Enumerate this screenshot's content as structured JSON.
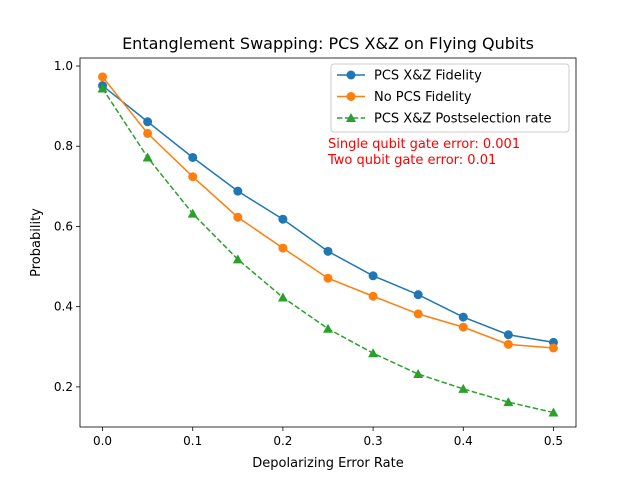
{
  "chart_data": {
    "type": "line",
    "title": "Entanglement Swapping: PCS X&Z on Flying Qubits",
    "xlabel": "Depolarizing Error Rate",
    "ylabel": "Probability",
    "x": [
      0.0,
      0.05,
      0.1,
      0.15,
      0.2,
      0.25,
      0.3,
      0.35,
      0.4,
      0.45,
      0.5
    ],
    "xlim": [
      -0.025,
      0.525
    ],
    "ylim": [
      0.1,
      1.02
    ],
    "xticks": [
      0.0,
      0.1,
      0.2,
      0.3,
      0.4,
      0.5
    ],
    "xtick_labels": [
      "0.0",
      "0.1",
      "0.2",
      "0.3",
      "0.4",
      "0.5"
    ],
    "yticks": [
      0.2,
      0.4,
      0.6,
      0.8,
      1.0
    ],
    "ytick_labels": [
      "0.2",
      "0.4",
      "0.6",
      "0.8",
      "1.0"
    ],
    "grid": false,
    "legend_position": "top-right",
    "series": [
      {
        "name": "PCS X&Z Fidelity",
        "color": "#1f77b4",
        "linestyle": "solid",
        "marker": "circle",
        "values": [
          0.951,
          0.861,
          0.772,
          0.688,
          0.618,
          0.538,
          0.477,
          0.43,
          0.374,
          0.33,
          0.311
        ]
      },
      {
        "name": "No PCS Fidelity",
        "color": "#ff7f0e",
        "linestyle": "solid",
        "marker": "circle",
        "values": [
          0.973,
          0.832,
          0.724,
          0.623,
          0.546,
          0.471,
          0.426,
          0.382,
          0.349,
          0.306,
          0.297
        ]
      },
      {
        "name": "PCS X&Z Postselection rate",
        "color": "#2ca02c",
        "linestyle": "dashed",
        "marker": "triangle",
        "values": [
          0.944,
          0.772,
          0.632,
          0.518,
          0.423,
          0.345,
          0.284,
          0.232,
          0.195,
          0.162,
          0.136
        ]
      }
    ],
    "annotations": [
      {
        "text": "Single qubit gate error: 0.001",
        "color": "#ff0000"
      },
      {
        "text": "Two qubit gate error: 0.01",
        "color": "#ff0000"
      }
    ]
  }
}
